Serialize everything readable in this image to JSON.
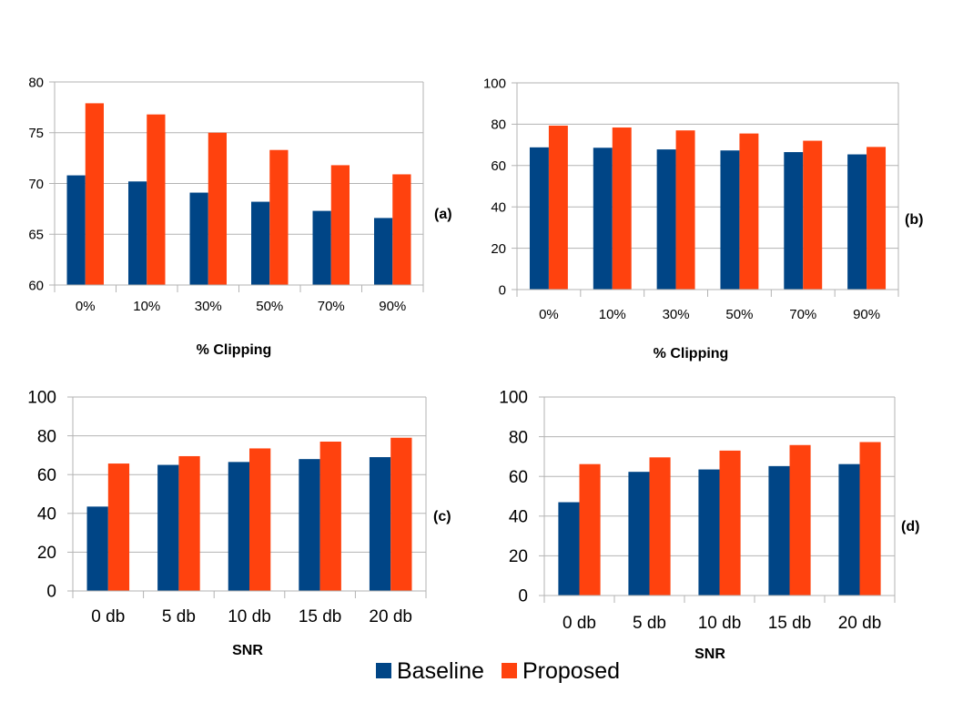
{
  "colors": {
    "baseline": "#004586",
    "proposed": "#ff420e",
    "grid": "#b3b3b3"
  },
  "legend": [
    {
      "label": "Baseline",
      "color": "#004586"
    },
    {
      "label": "Proposed",
      "color": "#ff420e"
    }
  ],
  "chart_data": [
    {
      "panel": "(a)",
      "type": "bar",
      "xlabel": "% Clipping",
      "ylabel": "",
      "categories": [
        "0%",
        "10%",
        "30%",
        "50%",
        "70%",
        "90%"
      ],
      "ylim": [
        60,
        80
      ],
      "yticks": [
        "60",
        "65",
        "70",
        "75",
        "80"
      ],
      "series": [
        {
          "name": "Baseline",
          "values": [
            70.8,
            70.2,
            69.1,
            68.2,
            67.3,
            66.6
          ]
        },
        {
          "name": "Proposed",
          "values": [
            77.9,
            76.8,
            75.0,
            73.3,
            71.8,
            70.9
          ]
        }
      ]
    },
    {
      "panel": "(b)",
      "type": "bar",
      "xlabel": "% Clipping",
      "ylabel": "",
      "categories": [
        "0%",
        "10%",
        "30%",
        "50%",
        "70%",
        "90%"
      ],
      "ylim": [
        0,
        100
      ],
      "yticks": [
        "0",
        "20",
        "40",
        "60",
        "80",
        "100"
      ],
      "series": [
        {
          "name": "Baseline",
          "values": [
            68.8,
            68.6,
            67.8,
            67.3,
            66.5,
            65.4
          ]
        },
        {
          "name": "Proposed",
          "values": [
            79.3,
            78.4,
            77.0,
            75.5,
            72.0,
            69.0
          ]
        }
      ]
    },
    {
      "panel": "(c)",
      "type": "bar",
      "xlabel": "SNR",
      "ylabel": "",
      "categories": [
        "0 db",
        "5 db",
        "10 db",
        "15 db",
        "20 db"
      ],
      "ylim": [
        0,
        100
      ],
      "yticks": [
        "0",
        "20",
        "40",
        "60",
        "80",
        "100"
      ],
      "series": [
        {
          "name": "Baseline",
          "values": [
            43.5,
            65.0,
            66.5,
            68.0,
            69.0
          ]
        },
        {
          "name": "Proposed",
          "values": [
            65.7,
            69.5,
            73.5,
            77.0,
            79.0
          ]
        }
      ]
    },
    {
      "panel": "(d)",
      "type": "bar",
      "xlabel": "SNR",
      "ylabel": "",
      "categories": [
        "0 db",
        "5 db",
        "10 db",
        "15 db",
        "20 db"
      ],
      "ylim": [
        0,
        100
      ],
      "yticks": [
        "0",
        "20",
        "40",
        "60",
        "80",
        "100"
      ],
      "series": [
        {
          "name": "Baseline",
          "values": [
            47.0,
            62.3,
            63.5,
            65.2,
            66.2
          ]
        },
        {
          "name": "Proposed",
          "values": [
            66.2,
            69.6,
            73.0,
            75.8,
            77.3
          ]
        }
      ]
    }
  ]
}
